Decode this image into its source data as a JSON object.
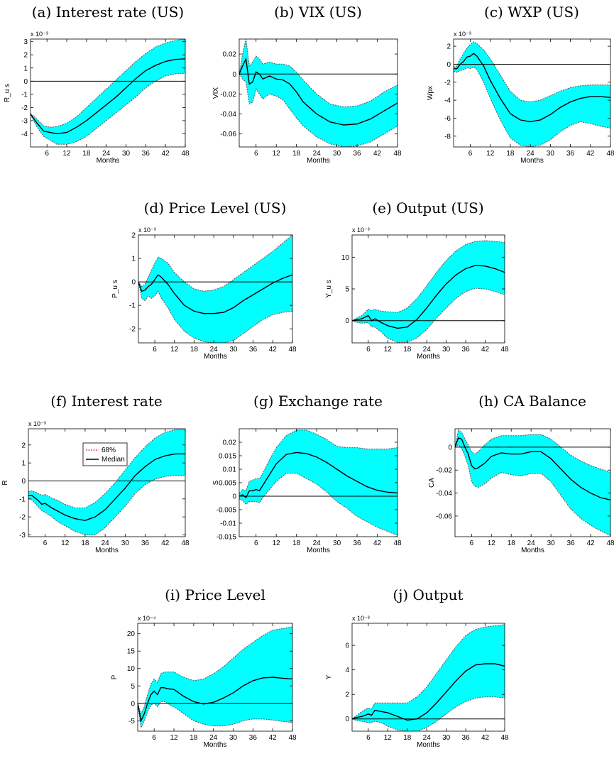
{
  "colors": {
    "band": "#00FFFF",
    "band_edge": "#555555",
    "median": "#000000",
    "zero": "#000000",
    "legend_68": "#d62728"
  },
  "legend": {
    "band_label": "68%",
    "median_label": "Median",
    "placement": "lower-left of panel (f)"
  },
  "chart_data": [
    {
      "type": "line",
      "title": "(a) Interest rate (US)",
      "xlabel": "Months",
      "ylabel": "R_u s",
      "exponent": "x 10⁻³",
      "xlim": [
        1,
        48
      ],
      "ylim": [
        -5,
        3.2
      ],
      "xticks": [
        6,
        12,
        18,
        24,
        30,
        36,
        42,
        48
      ],
      "yticks": [
        -4,
        -3,
        -2,
        -1,
        0,
        1,
        2,
        3
      ],
      "ytick_labels": [
        "-4",
        "-3",
        "-2",
        "-1",
        "0",
        "1",
        "2",
        "3"
      ],
      "x": [
        1,
        3,
        5,
        7,
        9,
        12,
        15,
        18,
        21,
        24,
        27,
        30,
        33,
        36,
        39,
        42,
        45,
        48
      ],
      "median": [
        -2.5,
        -3.2,
        -3.8,
        -3.9,
        -4.0,
        -3.9,
        -3.5,
        -3.0,
        -2.4,
        -1.8,
        -1.2,
        -0.5,
        0.2,
        0.8,
        1.2,
        1.5,
        1.65,
        1.7
      ],
      "upper": [
        -2.45,
        -2.9,
        -3.4,
        -3.5,
        -3.45,
        -3.2,
        -2.7,
        -2.0,
        -1.3,
        -0.6,
        0.1,
        0.8,
        1.5,
        2.1,
        2.6,
        2.9,
        3.1,
        3.2
      ],
      "lower": [
        -2.55,
        -3.5,
        -4.2,
        -4.5,
        -4.8,
        -4.8,
        -4.6,
        -4.2,
        -3.6,
        -3.0,
        -2.4,
        -1.8,
        -1.2,
        -0.5,
        0.0,
        0.4,
        0.55,
        0.6
      ]
    },
    {
      "type": "line",
      "title": "(b) VIX (US)",
      "xlabel": "Months",
      "ylabel": "VIX",
      "exponent": "",
      "xlim": [
        1,
        48
      ],
      "ylim": [
        -0.073,
        0.035
      ],
      "xticks": [
        6,
        12,
        18,
        24,
        30,
        36,
        42,
        48
      ],
      "yticks": [
        -0.06,
        -0.04,
        -0.02,
        0,
        0.02
      ],
      "ytick_labels": [
        "-0.06",
        "-0.04",
        "-0.02",
        "0",
        "0.02"
      ],
      "x": [
        1,
        2,
        3,
        4,
        5,
        6,
        7,
        8,
        10,
        12,
        14,
        16,
        18,
        20,
        24,
        28,
        32,
        36,
        40,
        44,
        48
      ],
      "median": [
        0,
        0.008,
        0.015,
        -0.01,
        -0.008,
        0.002,
        0.0,
        -0.005,
        -0.002,
        -0.005,
        -0.006,
        -0.01,
        -0.018,
        -0.028,
        -0.04,
        -0.048,
        -0.051,
        -0.05,
        -0.045,
        -0.037,
        -0.029
      ],
      "upper": [
        0,
        0.02,
        0.035,
        0.008,
        0.012,
        0.018,
        0.015,
        0.01,
        0.012,
        0.01,
        0.01,
        0.008,
        0.002,
        -0.006,
        -0.02,
        -0.03,
        -0.033,
        -0.032,
        -0.027,
        -0.018,
        -0.011
      ],
      "lower": [
        0,
        -0.005,
        -0.008,
        -0.03,
        -0.028,
        -0.015,
        -0.02,
        -0.025,
        -0.02,
        -0.022,
        -0.026,
        -0.035,
        -0.044,
        -0.052,
        -0.063,
        -0.07,
        -0.073,
        -0.072,
        -0.068,
        -0.06,
        -0.052
      ]
    },
    {
      "type": "line",
      "title": "(c) WXP (US)",
      "xlabel": "Months",
      "ylabel": "Wpx",
      "exponent": "x 10⁻³",
      "xlim": [
        1,
        48
      ],
      "ylim": [
        -9.2,
        2.8
      ],
      "xticks": [
        6,
        12,
        18,
        24,
        30,
        36,
        42,
        48
      ],
      "yticks": [
        -8,
        -6,
        -4,
        -2,
        0,
        2
      ],
      "ytick_labels": [
        "-8",
        "-6",
        "-4",
        "-2",
        "0",
        "2"
      ],
      "x": [
        1,
        2,
        3,
        4,
        5,
        6,
        7,
        8,
        10,
        12,
        15,
        18,
        21,
        24,
        27,
        30,
        33,
        36,
        39,
        42,
        45,
        48
      ],
      "median": [
        -0.5,
        -0.5,
        0.0,
        0.3,
        0.8,
        0.9,
        1.2,
        0.9,
        -0.2,
        -1.8,
        -3.8,
        -5.5,
        -6.2,
        -6.4,
        -6.2,
        -5.6,
        -4.8,
        -4.2,
        -3.8,
        -3.6,
        -3.6,
        -3.7
      ],
      "upper": [
        -0.3,
        -0.2,
        0.6,
        1.2,
        1.8,
        2.2,
        2.5,
        2.3,
        1.6,
        0.6,
        -1.2,
        -3.0,
        -4.0,
        -4.2,
        -4.0,
        -3.5,
        -3.0,
        -2.6,
        -2.4,
        -2.3,
        -2.3,
        -2.3
      ],
      "lower": [
        -0.8,
        -0.9,
        -0.7,
        -0.6,
        -0.4,
        -0.5,
        -0.3,
        -0.6,
        -2.0,
        -3.8,
        -6.2,
        -8.2,
        -9.0,
        -9.2,
        -9.0,
        -8.4,
        -7.5,
        -6.8,
        -6.4,
        -6.6,
        -6.9,
        -7.1
      ]
    },
    {
      "type": "line",
      "title": "(d) Price Level (US)",
      "xlabel": "Months",
      "ylabel": "P_u s",
      "exponent": "x 10⁻³",
      "xlim": [
        1,
        48
      ],
      "ylim": [
        -2.6,
        2.0
      ],
      "xticks": [
        6,
        12,
        18,
        24,
        30,
        36,
        42,
        48
      ],
      "yticks": [
        -2,
        -1,
        0,
        1,
        2
      ],
      "ytick_labels": [
        "-2",
        "-1",
        "0",
        "1",
        "2"
      ],
      "x": [
        1,
        2,
        3,
        4,
        5,
        6,
        7,
        8,
        10,
        12,
        15,
        18,
        21,
        24,
        27,
        30,
        33,
        36,
        39,
        42,
        45,
        48
      ],
      "median": [
        0.0,
        -0.4,
        -0.35,
        -0.2,
        -0.1,
        0.1,
        0.3,
        0.2,
        -0.1,
        -0.5,
        -1.0,
        -1.25,
        -1.35,
        -1.35,
        -1.3,
        -1.1,
        -0.8,
        -0.55,
        -0.3,
        -0.05,
        0.15,
        0.3
      ],
      "upper": [
        0.0,
        -0.2,
        -0.1,
        0.2,
        0.5,
        0.8,
        1.05,
        1.0,
        0.8,
        0.4,
        0.0,
        -0.3,
        -0.4,
        -0.35,
        -0.2,
        0.1,
        0.4,
        0.7,
        1.0,
        1.3,
        1.65,
        2.0
      ],
      "lower": [
        0.0,
        -0.7,
        -0.8,
        -0.6,
        -0.7,
        -0.6,
        -0.4,
        -0.7,
        -1.1,
        -1.6,
        -2.1,
        -2.4,
        -2.55,
        -2.6,
        -2.6,
        -2.5,
        -2.2,
        -1.9,
        -1.6,
        -1.4,
        -1.3,
        -1.25
      ]
    },
    {
      "type": "line",
      "title": "(e) Output (US)",
      "xlabel": "Months",
      "ylabel": "Y_u s",
      "exponent": "x 10⁻³",
      "xlim": [
        1,
        48
      ],
      "ylim": [
        -3.5,
        13.5
      ],
      "xticks": [
        6,
        12,
        18,
        24,
        30,
        36,
        42,
        48
      ],
      "yticks": [
        0,
        5,
        10
      ],
      "ytick_labels": [
        "0",
        "5",
        "10"
      ],
      "x": [
        1,
        2,
        4,
        6,
        7,
        8,
        10,
        12,
        15,
        18,
        21,
        24,
        27,
        30,
        33,
        36,
        39,
        42,
        45,
        48
      ],
      "median": [
        0.0,
        0.1,
        0.3,
        0.8,
        0.0,
        0.3,
        -0.3,
        -0.8,
        -1.2,
        -1.0,
        0.2,
        2.0,
        4.0,
        5.8,
        7.2,
        8.2,
        8.7,
        8.6,
        8.2,
        7.6
      ],
      "upper": [
        0.0,
        0.3,
        0.8,
        1.8,
        1.6,
        1.8,
        1.5,
        1.4,
        1.3,
        2.0,
        3.5,
        5.5,
        7.6,
        9.5,
        11.0,
        12.0,
        12.5,
        12.6,
        12.5,
        12.3
      ],
      "lower": [
        0.0,
        -0.2,
        -0.4,
        -0.3,
        -1.0,
        -1.0,
        -1.8,
        -2.8,
        -3.4,
        -3.4,
        -2.7,
        -1.4,
        0.4,
        2.0,
        3.5,
        4.6,
        5.1,
        5.0,
        4.6,
        4.1
      ]
    },
    {
      "type": "line",
      "title": "(f) Interest rate",
      "xlabel": "Months",
      "ylabel": "R",
      "exponent": "x 10⁻³",
      "xlim": [
        1,
        48
      ],
      "ylim": [
        -3.1,
        2.9
      ],
      "xticks": [
        6,
        12,
        18,
        24,
        30,
        36,
        42,
        48
      ],
      "yticks": [
        -3,
        -2,
        -1,
        0,
        1,
        2
      ],
      "ytick_labels": [
        "-3",
        "-2",
        "-1",
        "0",
        "1",
        "2"
      ],
      "x": [
        1,
        2,
        4,
        5,
        6,
        8,
        10,
        12,
        15,
        18,
        21,
        24,
        27,
        30,
        33,
        36,
        39,
        42,
        45,
        48
      ],
      "median": [
        -0.8,
        -0.8,
        -1.1,
        -1.3,
        -1.25,
        -1.5,
        -1.7,
        -1.9,
        -2.1,
        -2.2,
        -2.0,
        -1.6,
        -1.0,
        -0.4,
        0.3,
        0.8,
        1.2,
        1.4,
        1.5,
        1.5
      ],
      "upper": [
        -0.6,
        -0.55,
        -0.7,
        -0.8,
        -0.75,
        -0.95,
        -1.1,
        -1.3,
        -1.5,
        -1.5,
        -1.2,
        -0.7,
        -0.1,
        0.6,
        1.3,
        1.9,
        2.4,
        2.7,
        2.85,
        2.9
      ],
      "lower": [
        -1.0,
        -1.05,
        -1.45,
        -1.65,
        -1.75,
        -2.0,
        -2.3,
        -2.5,
        -2.8,
        -3.0,
        -3.0,
        -2.6,
        -2.0,
        -1.4,
        -0.7,
        -0.2,
        0.1,
        0.25,
        0.3,
        0.3
      ]
    },
    {
      "type": "line",
      "title": "(g) Exchange rate",
      "xlabel": "Months",
      "ylabel": "S",
      "exponent": "",
      "xlim": [
        1,
        48
      ],
      "ylim": [
        -0.015,
        0.025
      ],
      "xticks": [
        6,
        12,
        18,
        24,
        30,
        36,
        42,
        48
      ],
      "yticks": [
        -0.015,
        -0.01,
        -0.005,
        0,
        0.005,
        0.01,
        0.015,
        0.02
      ],
      "ytick_labels": [
        "-0.015",
        "-0.01",
        "-0.005",
        "0",
        "0.005",
        "0.01",
        "0.015",
        "0.02"
      ],
      "x": [
        1,
        2,
        3,
        4,
        5,
        6,
        7,
        8,
        10,
        12,
        15,
        18,
        21,
        24,
        27,
        30,
        33,
        36,
        39,
        42,
        45,
        48
      ],
      "median": [
        0.0,
        0.0005,
        -0.0005,
        0.002,
        0.002,
        0.0025,
        0.002,
        0.004,
        0.008,
        0.012,
        0.0155,
        0.0162,
        0.0158,
        0.0145,
        0.0125,
        0.01,
        0.0075,
        0.0055,
        0.0035,
        0.0022,
        0.0015,
        0.0012
      ],
      "upper": [
        0.001,
        0.0025,
        0.002,
        0.0055,
        0.006,
        0.0065,
        0.0065,
        0.0085,
        0.0135,
        0.018,
        0.0225,
        0.0245,
        0.0245,
        0.023,
        0.021,
        0.0185,
        0.018,
        0.018,
        0.0175,
        0.0175,
        0.0175,
        0.018
      ],
      "lower": [
        -0.001,
        -0.0015,
        -0.003,
        -0.002,
        -0.002,
        -0.002,
        -0.0025,
        -0.0005,
        0.0025,
        0.0055,
        0.0085,
        0.0085,
        0.0065,
        0.0045,
        0.0015,
        -0.002,
        -0.0045,
        -0.0075,
        -0.0095,
        -0.0115,
        -0.013,
        -0.0145
      ]
    },
    {
      "type": "line",
      "title": "(h) CA Balance",
      "xlabel": "Months",
      "ylabel": "CA",
      "exponent": "",
      "xlim": [
        1,
        48
      ],
      "ylim": [
        -0.078,
        0.016
      ],
      "xticks": [
        6,
        12,
        18,
        24,
        30,
        36,
        42,
        48
      ],
      "yticks": [
        -0.06,
        -0.04,
        -0.02,
        0
      ],
      "ytick_labels": [
        "-0.06",
        "-0.04",
        "-0.02",
        "0"
      ],
      "x": [
        1,
        2,
        3,
        4,
        5,
        6,
        7,
        8,
        10,
        12,
        15,
        18,
        21,
        24,
        27,
        30,
        33,
        36,
        39,
        42,
        45,
        48
      ],
      "median": [
        0.0,
        0.008,
        0.007,
        0.0,
        -0.006,
        -0.016,
        -0.019,
        -0.018,
        -0.014,
        -0.008,
        -0.005,
        -0.006,
        -0.006,
        -0.004,
        -0.004,
        -0.01,
        -0.019,
        -0.028,
        -0.035,
        -0.04,
        -0.044,
        -0.046
      ],
      "upper": [
        0.0,
        0.015,
        0.013,
        0.007,
        0.002,
        -0.004,
        -0.006,
        -0.004,
        0.002,
        0.007,
        0.01,
        0.01,
        0.01,
        0.011,
        0.011,
        0.007,
        0.0,
        -0.007,
        -0.012,
        -0.016,
        -0.019,
        -0.022
      ],
      "lower": [
        0.0,
        0.002,
        -0.001,
        -0.008,
        -0.016,
        -0.03,
        -0.034,
        -0.035,
        -0.032,
        -0.027,
        -0.022,
        -0.024,
        -0.025,
        -0.023,
        -0.023,
        -0.03,
        -0.042,
        -0.054,
        -0.062,
        -0.068,
        -0.073,
        -0.077
      ]
    },
    {
      "type": "line",
      "title": "(i) Price Level",
      "xlabel": "Months",
      "ylabel": "P",
      "exponent": "x 10⁻⁴",
      "xlim": [
        1,
        48
      ],
      "ylim": [
        -8,
        23
      ],
      "xticks": [
        6,
        12,
        18,
        24,
        30,
        36,
        42,
        48
      ],
      "yticks": [
        -5,
        0,
        5,
        10,
        15,
        20
      ],
      "ytick_labels": [
        "-5",
        "0",
        "5",
        "10",
        "15",
        "20"
      ],
      "x": [
        1,
        2,
        3,
        4,
        5,
        6,
        7,
        8,
        9,
        10,
        12,
        15,
        18,
        21,
        24,
        27,
        30,
        33,
        36,
        39,
        42,
        45,
        48
      ],
      "median": [
        0.0,
        -5.0,
        -3.0,
        0.0,
        2.5,
        3.5,
        2.5,
        4.5,
        4.5,
        4.2,
        4.0,
        2.0,
        0.5,
        -0.2,
        0.3,
        1.5,
        3.0,
        5.0,
        6.5,
        7.3,
        7.5,
        7.2,
        7.0
      ],
      "upper": [
        0.0,
        -3.0,
        -1.0,
        2.5,
        5.5,
        7.0,
        6.0,
        8.5,
        9.0,
        9.0,
        9.0,
        7.5,
        6.5,
        7.0,
        8.5,
        10.5,
        13.0,
        15.5,
        17.5,
        19.5,
        21.0,
        21.5,
        22.0
      ],
      "lower": [
        0.0,
        -7.0,
        -5.0,
        -2.5,
        -0.5,
        0.0,
        -1.0,
        0.5,
        0.5,
        0.0,
        -1.0,
        -3.0,
        -5.0,
        -6.0,
        -6.5,
        -6.5,
        -6.0,
        -5.0,
        -4.5,
        -4.5,
        -4.8,
        -5.2,
        -5.5
      ]
    },
    {
      "type": "line",
      "title": "(j) Output",
      "xlabel": "Months",
      "ylabel": "Y",
      "exponent": "x 10⁻³",
      "xlim": [
        1,
        48
      ],
      "ylim": [
        -1.0,
        7.8
      ],
      "xticks": [
        6,
        12,
        18,
        24,
        30,
        36,
        42,
        48
      ],
      "yticks": [
        0,
        2,
        4,
        6
      ],
      "ytick_labels": [
        "0",
        "2",
        "4",
        "6"
      ],
      "x": [
        1,
        2,
        4,
        6,
        7,
        8,
        10,
        12,
        15,
        18,
        21,
        24,
        27,
        30,
        33,
        36,
        39,
        42,
        45,
        48
      ],
      "median": [
        0.0,
        0.1,
        0.2,
        0.4,
        0.3,
        0.7,
        0.6,
        0.5,
        0.2,
        -0.1,
        0.0,
        0.5,
        1.3,
        2.2,
        3.1,
        3.9,
        4.4,
        4.5,
        4.5,
        4.3
      ],
      "upper": [
        0.0,
        0.2,
        0.6,
        0.9,
        0.8,
        1.3,
        1.3,
        1.3,
        1.3,
        1.3,
        1.8,
        2.6,
        3.7,
        4.8,
        5.9,
        6.8,
        7.3,
        7.5,
        7.6,
        7.7
      ],
      "lower": [
        0.0,
        -0.1,
        -0.2,
        -0.3,
        -0.3,
        -0.2,
        -0.3,
        -0.6,
        -0.9,
        -1.0,
        -1.0,
        -0.7,
        -0.2,
        0.4,
        1.0,
        1.4,
        1.7,
        1.8,
        1.8,
        1.7
      ]
    }
  ]
}
